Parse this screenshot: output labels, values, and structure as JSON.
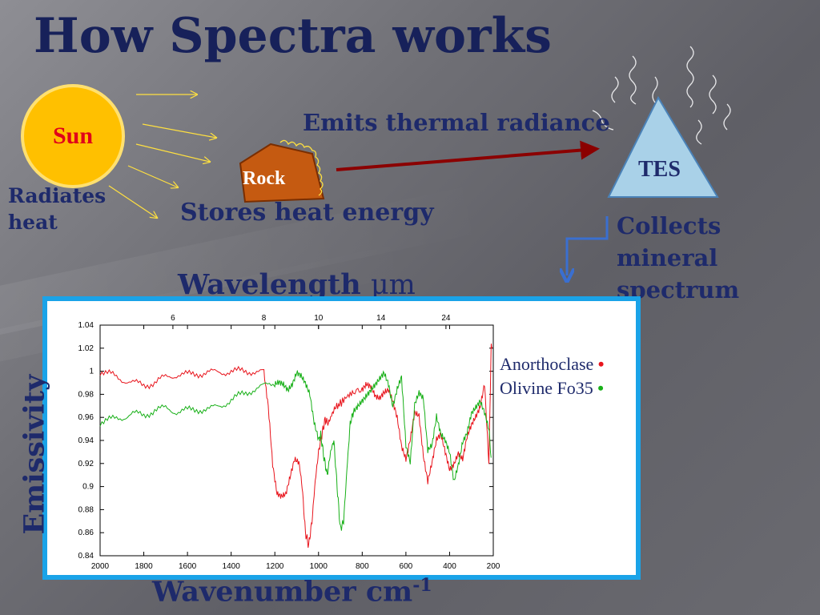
{
  "slide": {
    "title": "How Spectra works",
    "sun_label": "Sun",
    "sun_caption_line1": "Radiates",
    "sun_caption_line2": "heat",
    "rock_label": "Rock",
    "rock_caption": "Stores heat energy",
    "arrow_caption": "Emits thermal radiance",
    "tes_label": "TES",
    "tes_caption_line1": "Collects mineral",
    "tes_caption_line2": "spectrum",
    "top_axis_title": "Wavelength",
    "top_axis_unit": "μm",
    "bottom_axis_title": "Wavenumber cm",
    "bottom_axis_exp": "-1",
    "left_axis_title": "Emissivity",
    "colors": {
      "title": "#17215a",
      "sun": "#ffc000",
      "rock": "#c55a11",
      "tes": "#a9d1e8",
      "arrow": "#8b0000",
      "chart_border": "#1aa3e8"
    }
  },
  "legend": [
    {
      "label": "Anorthoclase",
      "marker": "•",
      "color": "#e8141c"
    },
    {
      "label": "Olivine Fo35",
      "marker": "•",
      "color": "#18b018"
    }
  ],
  "chart_data": {
    "type": "line",
    "xlabel": "Wavenumber cm-1",
    "ylabel": "Emissivity",
    "x2label": "Wavelength μm",
    "xlim": [
      2000,
      200
    ],
    "ylim": [
      0.84,
      1.04
    ],
    "xticks": [
      2000,
      1800,
      1600,
      1400,
      1200,
      1000,
      800,
      600,
      400,
      200
    ],
    "yticks": [
      0.84,
      0.86,
      0.88,
      0.9,
      0.92,
      0.94,
      0.96,
      0.98,
      1,
      1.02,
      1.04
    ],
    "ytick_labels": [
      "0.84",
      "0.86",
      "0.88",
      "0.9",
      "0.92",
      "0.94",
      "0.96",
      "0.98",
      "1",
      "1.02",
      "1.04"
    ],
    "x2ticks": [
      6,
      8,
      10,
      14,
      24
    ],
    "series": [
      {
        "name": "Anorthoclase",
        "color": "#e8141c",
        "x": [
          2000,
          1950,
          1900,
          1850,
          1800,
          1750,
          1700,
          1650,
          1600,
          1550,
          1500,
          1450,
          1400,
          1350,
          1300,
          1250,
          1230,
          1210,
          1190,
          1170,
          1150,
          1130,
          1110,
          1090,
          1075,
          1060,
          1045,
          1030,
          1015,
          1000,
          985,
          970,
          955,
          940,
          925,
          900,
          870,
          840,
          800,
          780,
          760,
          740,
          720,
          700,
          680,
          660,
          640,
          620,
          600,
          580,
          560,
          540,
          520,
          500,
          480,
          460,
          440,
          420,
          400,
          380,
          360,
          340,
          320,
          300,
          280,
          260,
          240,
          220,
          210,
          205
        ],
        "y": [
          1.0,
          0.997,
          0.993,
          0.99,
          0.988,
          0.99,
          0.995,
          0.997,
          0.997,
          0.998,
          0.999,
          0.999,
          1.0,
          1.0,
          1.0,
          0.999,
          0.97,
          0.92,
          0.895,
          0.893,
          0.895,
          0.91,
          0.925,
          0.922,
          0.9,
          0.86,
          0.849,
          0.87,
          0.905,
          0.93,
          0.945,
          0.958,
          0.955,
          0.962,
          0.968,
          0.972,
          0.978,
          0.982,
          0.985,
          0.99,
          0.988,
          0.98,
          0.978,
          0.983,
          0.985,
          0.975,
          0.96,
          0.935,
          0.923,
          0.94,
          0.963,
          0.96,
          0.925,
          0.903,
          0.92,
          0.94,
          0.945,
          0.93,
          0.915,
          0.92,
          0.93,
          0.925,
          0.945,
          0.955,
          0.962,
          0.97,
          0.99,
          0.92,
          1.02,
          1.02
        ]
      },
      {
        "name": "Olivine Fo35",
        "color": "#18b018",
        "x": [
          2000,
          1950,
          1900,
          1850,
          1800,
          1750,
          1700,
          1650,
          1600,
          1550,
          1500,
          1450,
          1400,
          1350,
          1300,
          1250,
          1200,
          1180,
          1160,
          1140,
          1120,
          1100,
          1080,
          1060,
          1040,
          1020,
          1000,
          990,
          975,
          960,
          945,
          930,
          915,
          900,
          885,
          870,
          855,
          840,
          820,
          800,
          780,
          760,
          740,
          720,
          700,
          680,
          660,
          640,
          620,
          600,
          580,
          560,
          540,
          520,
          500,
          480,
          460,
          440,
          420,
          400,
          380,
          360,
          340,
          320,
          300,
          280,
          260,
          240,
          220,
          210
        ],
        "y": [
          0.956,
          0.958,
          0.96,
          0.963,
          0.962,
          0.966,
          0.968,
          0.965,
          0.966,
          0.967,
          0.967,
          0.97,
          0.975,
          0.98,
          0.984,
          0.987,
          0.99,
          0.992,
          0.99,
          0.985,
          0.99,
          1.0,
          0.997,
          0.99,
          0.98,
          0.955,
          0.94,
          0.945,
          0.925,
          0.91,
          0.93,
          0.94,
          0.9,
          0.863,
          0.87,
          0.915,
          0.955,
          0.965,
          0.97,
          0.975,
          0.98,
          0.985,
          0.99,
          0.995,
          1.0,
          0.99,
          0.97,
          0.985,
          0.995,
          0.935,
          0.92,
          0.97,
          0.98,
          0.975,
          0.93,
          0.935,
          0.96,
          0.945,
          0.94,
          0.93,
          0.905,
          0.92,
          0.94,
          0.948,
          0.965,
          0.97,
          0.975,
          0.965,
          0.95,
          0.925
        ]
      }
    ]
  }
}
